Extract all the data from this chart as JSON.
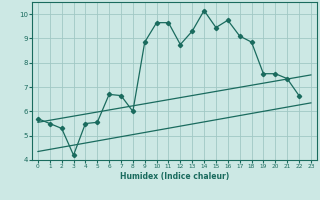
{
  "xlabel": "Humidex (Indice chaleur)",
  "ylabel": "",
  "xlim": [
    -0.5,
    23.5
  ],
  "ylim": [
    4,
    10.5
  ],
  "yticks": [
    4,
    5,
    6,
    7,
    8,
    9,
    10
  ],
  "xticks": [
    0,
    1,
    2,
    3,
    4,
    5,
    6,
    7,
    8,
    9,
    10,
    11,
    12,
    13,
    14,
    15,
    16,
    17,
    18,
    19,
    20,
    21,
    22,
    23
  ],
  "bg_color": "#cce8e4",
  "line_color": "#1a6b5e",
  "grid_color": "#a0c8c4",
  "line1_x": [
    0,
    1,
    2,
    3,
    4,
    5,
    6,
    7,
    8,
    9,
    10,
    11,
    12,
    13,
    14,
    15,
    16,
    17,
    18,
    19,
    20,
    21,
    22
  ],
  "line1_y": [
    5.7,
    5.5,
    5.3,
    4.2,
    5.5,
    5.55,
    6.7,
    6.65,
    6.0,
    8.85,
    9.65,
    9.65,
    8.75,
    9.3,
    10.15,
    9.45,
    9.75,
    9.1,
    8.85,
    7.55,
    7.55,
    7.35,
    6.65
  ],
  "line2_x": [
    0,
    23
  ],
  "line2_y": [
    4.35,
    6.35
  ],
  "line3_x": [
    0,
    23
  ],
  "line3_y": [
    5.55,
    7.5
  ]
}
